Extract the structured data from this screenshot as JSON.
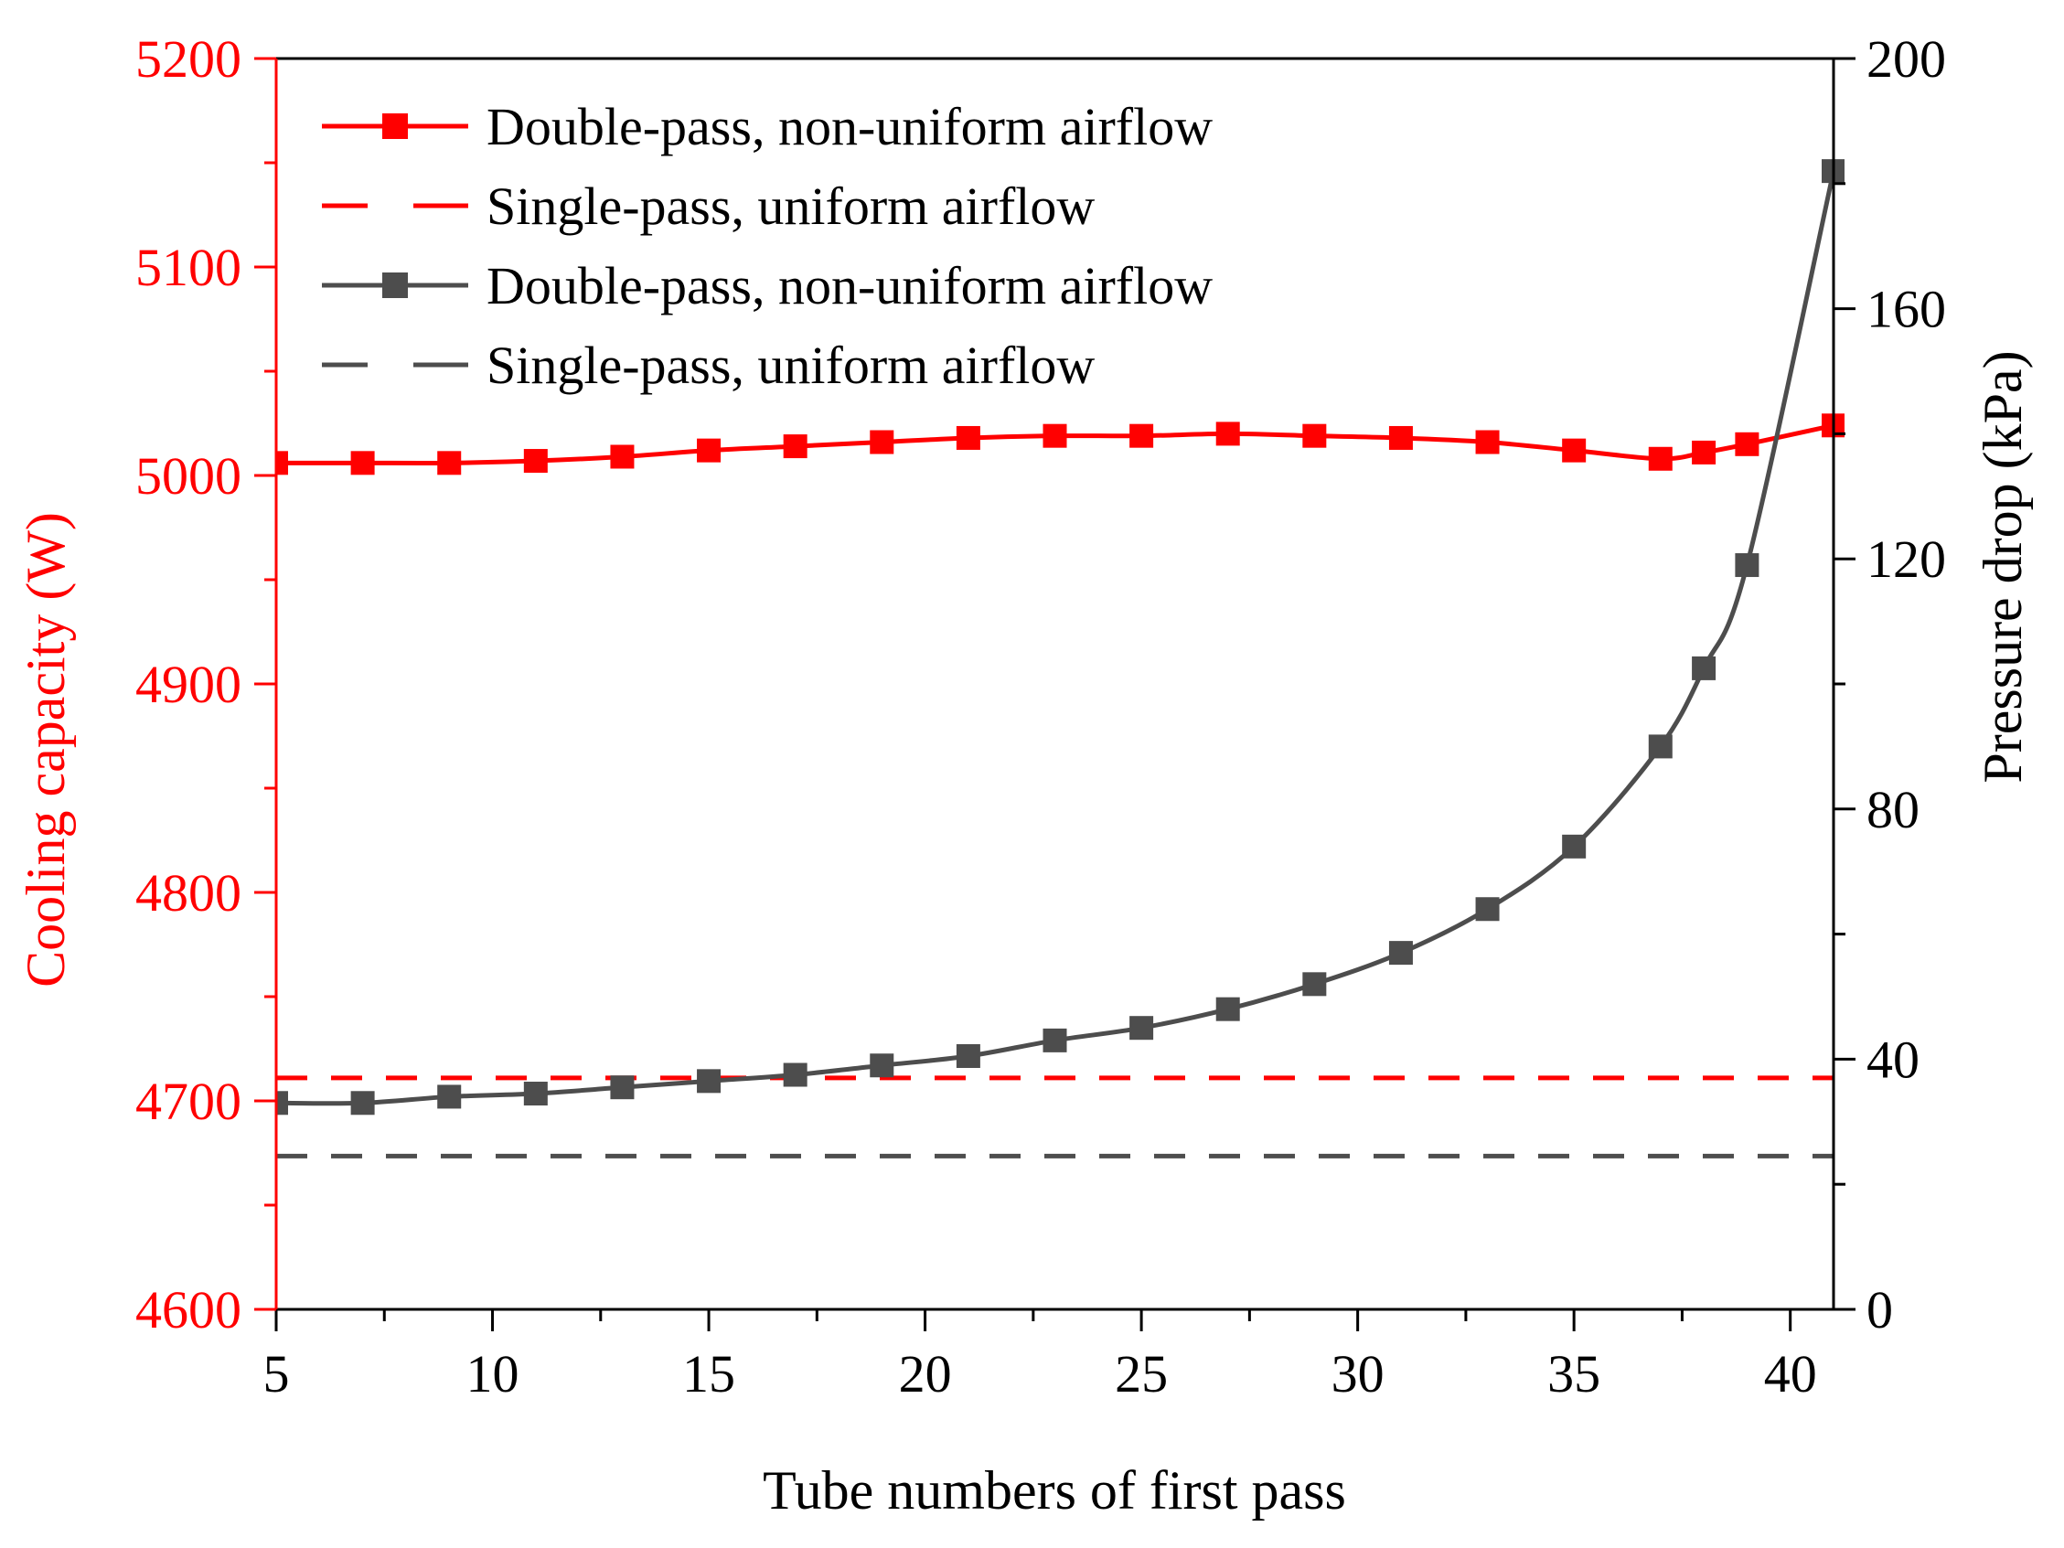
{
  "chart_data": {
    "type": "line",
    "title": "",
    "xlabel": "Tube numbers of first pass",
    "ylabel_left": "Cooling capacity (W)",
    "ylabel_right": "Pressure drop (kPa)",
    "xlim": [
      5,
      41
    ],
    "ylim_left": [
      4600,
      5200
    ],
    "ylim_right": [
      0,
      200
    ],
    "x_ticks": [
      5,
      10,
      15,
      20,
      25,
      30,
      35,
      40
    ],
    "y_left_ticks": [
      4600,
      4700,
      4800,
      4900,
      5000,
      5100,
      5200
    ],
    "y_right_ticks": [
      0,
      40,
      80,
      120,
      160,
      200
    ],
    "grid": false,
    "legend_position": "top-left",
    "colors": {
      "capacity": "#ff0000",
      "pressure": "#4d4d4d",
      "axis": "#000000"
    },
    "series": [
      {
        "name": "Double-pass, non-uniform airflow",
        "axis": "left",
        "style": "solid-square",
        "x": [
          5,
          7,
          9,
          11,
          13,
          15,
          17,
          19,
          21,
          23,
          25,
          27,
          29,
          31,
          33,
          35,
          37,
          38,
          39,
          41
        ],
        "values": [
          5006,
          5006,
          5006,
          5007,
          5009,
          5012,
          5014,
          5016,
          5018,
          5019,
          5019,
          5020,
          5019,
          5018,
          5016,
          5012,
          5008,
          5011,
          5015,
          5024
        ]
      },
      {
        "name": "Single-pass, uniform airflow",
        "axis": "left",
        "style": "dashed",
        "x": [
          5,
          41
        ],
        "values": [
          4711,
          4711
        ]
      },
      {
        "name": "Double-pass, non-uniform airflow",
        "axis": "right",
        "style": "solid-square",
        "x": [
          5,
          7,
          9,
          11,
          13,
          15,
          17,
          19,
          21,
          23,
          25,
          27,
          29,
          31,
          33,
          35,
          37,
          38,
          39,
          41
        ],
        "values": [
          33,
          33,
          34,
          34.5,
          35.5,
          36.5,
          37.5,
          39,
          40.5,
          43,
          45,
          48,
          52,
          57,
          64,
          74,
          90,
          102.5,
          119,
          182
        ]
      },
      {
        "name": "Single-pass, uniform airflow",
        "axis": "right",
        "style": "dashed",
        "x": [
          5,
          41
        ],
        "values": [
          24.5,
          24.5
        ]
      }
    ]
  }
}
